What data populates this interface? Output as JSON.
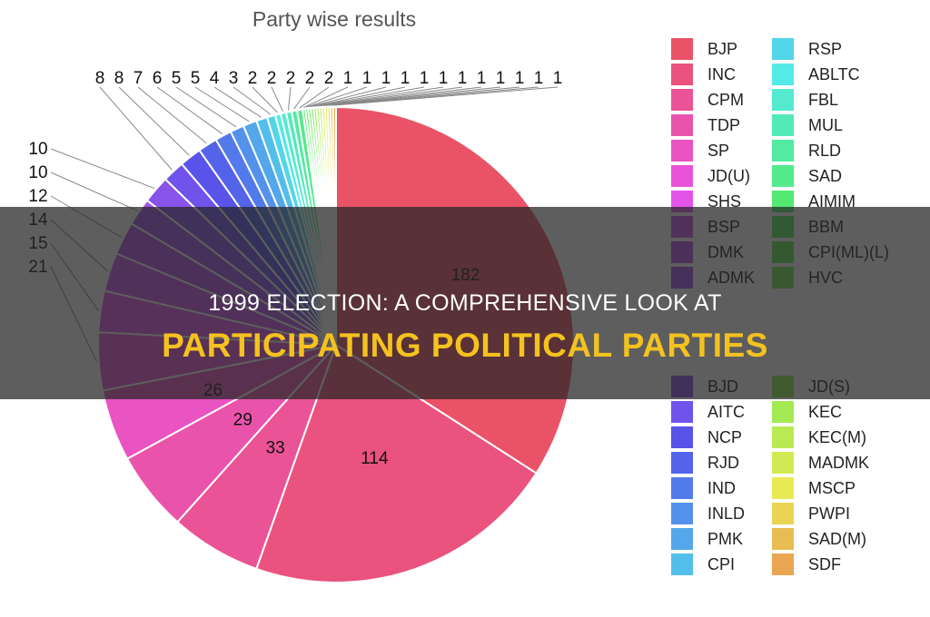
{
  "banner": {
    "subtitle": "1999 ELECTION: A COMPREHENSIVE LOOK AT",
    "title": "PARTICIPATING POLITICAL PARTIES"
  },
  "chart_data": {
    "type": "pie",
    "title": "Party wise results",
    "start": "12 o'clock, clockwise",
    "legend_position": "right",
    "categories": [
      "BJP",
      "INC",
      "CPM",
      "TDP",
      "SP",
      "JD(U)",
      "SHS",
      "BSP",
      "DMK",
      "ADMK",
      "BJD",
      "AITC",
      "NCP",
      "RJD",
      "IND",
      "INLD",
      "PMK",
      "CPI",
      "RSP",
      "ABLTC",
      "FBL",
      "MUL",
      "RLD",
      "SAD",
      "AIMIM",
      "BBM",
      "CPI(ML)(L)",
      "HVC",
      "JD(S)",
      "KEC",
      "KEC(M)",
      "MADMK",
      "MSCP",
      "PWPI",
      "SAD(M)",
      "SDF"
    ],
    "values": [
      182,
      114,
      33,
      29,
      26,
      21,
      15,
      14,
      12,
      10,
      10,
      8,
      8,
      7,
      6,
      5,
      5,
      4,
      3,
      2,
      2,
      2,
      2,
      2,
      1,
      1,
      1,
      1,
      1,
      1,
      1,
      1,
      1,
      1,
      1,
      1
    ],
    "data_labels": [
      "182",
      "114",
      "33",
      "29",
      "26",
      "21",
      "15",
      "14",
      "12",
      "10",
      "10",
      "8",
      "8",
      "7",
      "6",
      "5",
      "5",
      "4",
      "3",
      "2",
      "2",
      "2",
      "2",
      "2",
      "1",
      "1",
      "1",
      "1",
      "1",
      "1",
      "1",
      "1",
      "1",
      "1",
      "1",
      "1"
    ]
  }
}
